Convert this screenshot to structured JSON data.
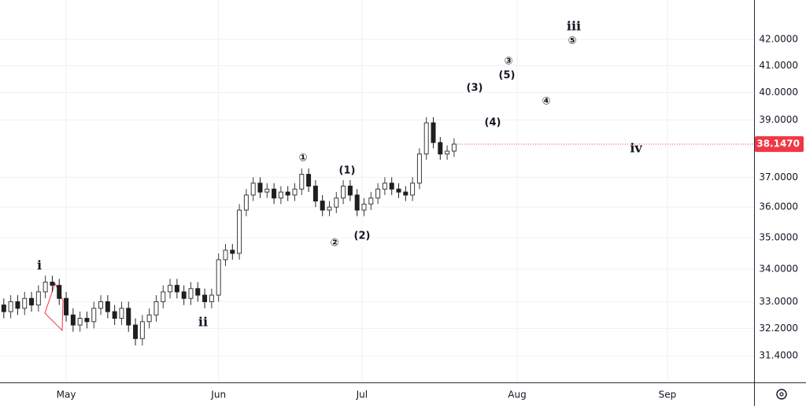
{
  "chart_data": {
    "type": "candlestick",
    "log_scale": true,
    "grid": true,
    "up_color": "#3a3a3a",
    "down_color": "#1f1f1f",
    "x": [
      -9,
      -8,
      -7,
      -6,
      -5,
      -4,
      -3,
      -2,
      -1,
      0,
      1,
      2,
      3,
      4,
      5,
      6,
      7,
      8,
      9,
      10,
      11,
      12,
      13,
      14,
      15,
      16,
      17,
      18,
      19,
      20,
      21,
      22,
      23,
      24,
      25,
      26,
      27,
      28,
      29,
      30,
      31,
      32,
      33,
      34,
      35,
      36,
      37,
      38,
      39,
      40,
      41,
      42,
      43,
      44,
      45,
      46,
      47,
      48,
      49,
      50,
      51,
      52,
      53,
      54,
      55,
      56
    ],
    "open": [
      32.9,
      32.7,
      33.0,
      32.8,
      33.1,
      32.9,
      33.3,
      33.6,
      33.5,
      33.1,
      32.6,
      32.3,
      32.5,
      32.4,
      32.8,
      33.0,
      32.7,
      32.5,
      32.8,
      32.3,
      31.9,
      32.4,
      32.6,
      33.0,
      33.3,
      33.5,
      33.3,
      33.1,
      33.4,
      33.2,
      33.0,
      33.2,
      34.3,
      34.6,
      34.5,
      35.9,
      36.4,
      36.8,
      36.5,
      36.6,
      36.3,
      36.5,
      36.4,
      36.6,
      37.1,
      36.7,
      36.2,
      35.9,
      36.0,
      36.3,
      36.7,
      36.4,
      35.9,
      36.1,
      36.3,
      36.6,
      36.8,
      36.6,
      36.5,
      36.4,
      36.8,
      37.8,
      38.9,
      38.2,
      37.8,
      37.9
    ],
    "high": [
      33.1,
      33.2,
      33.2,
      33.3,
      33.3,
      33.5,
      33.8,
      33.8,
      33.7,
      33.3,
      32.8,
      32.7,
      32.7,
      33.0,
      33.2,
      33.2,
      32.9,
      33.0,
      33.0,
      32.5,
      32.6,
      32.8,
      33.2,
      33.5,
      33.7,
      33.7,
      33.5,
      33.6,
      33.6,
      33.4,
      33.4,
      34.5,
      34.8,
      34.8,
      36.1,
      36.6,
      37.0,
      37.0,
      36.8,
      36.8,
      36.7,
      36.7,
      36.8,
      37.3,
      37.3,
      36.9,
      36.4,
      36.2,
      36.5,
      36.9,
      36.9,
      36.6,
      36.3,
      36.5,
      36.8,
      37.0,
      37.0,
      36.8,
      36.7,
      37.0,
      38.0,
      39.1,
      39.1,
      38.4,
      38.1,
      38.35
    ],
    "low": [
      32.5,
      32.5,
      32.6,
      32.6,
      32.7,
      32.7,
      33.1,
      33.3,
      32.9,
      32.4,
      32.1,
      32.1,
      32.2,
      32.2,
      32.6,
      32.5,
      32.3,
      32.3,
      32.1,
      31.7,
      31.7,
      32.2,
      32.4,
      32.8,
      33.1,
      33.1,
      32.9,
      32.9,
      33.0,
      32.8,
      32.8,
      33.0,
      34.1,
      34.3,
      34.3,
      35.7,
      36.2,
      36.3,
      36.3,
      36.1,
      36.1,
      36.2,
      36.2,
      36.4,
      36.5,
      36.0,
      35.7,
      35.7,
      35.8,
      36.1,
      36.2,
      35.7,
      35.7,
      35.9,
      36.1,
      36.4,
      36.4,
      36.3,
      36.2,
      36.2,
      36.6,
      37.6,
      38.0,
      37.6,
      37.6,
      37.7
    ],
    "close": [
      32.7,
      33.0,
      32.8,
      33.1,
      32.9,
      33.3,
      33.6,
      33.5,
      33.1,
      32.6,
      32.3,
      32.5,
      32.4,
      32.8,
      33.0,
      32.7,
      32.5,
      32.8,
      32.3,
      31.9,
      32.4,
      32.6,
      33.0,
      33.3,
      33.5,
      33.3,
      33.1,
      33.4,
      33.2,
      33.0,
      33.2,
      34.3,
      34.6,
      34.5,
      35.9,
      36.4,
      36.8,
      36.5,
      36.6,
      36.3,
      36.5,
      36.4,
      36.6,
      37.1,
      36.7,
      36.2,
      35.9,
      36.0,
      36.3,
      36.7,
      36.4,
      35.9,
      36.1,
      36.3,
      36.6,
      36.8,
      36.6,
      36.5,
      36.4,
      36.8,
      37.8,
      38.9,
      38.2,
      37.8,
      37.9,
      38.147
    ],
    "last_price_label": "38.1470",
    "last_price_color": "#f23645",
    "xlim": [
      -9.55,
      99.3
    ],
    "xticks": [
      {
        "value": 0,
        "label": "May"
      },
      {
        "value": 22,
        "label": "Jun"
      },
      {
        "value": 42.7,
        "label": "Jul"
      },
      {
        "value": 65.1,
        "label": "Aug"
      },
      {
        "value": 86.8,
        "label": "Sep"
      }
    ],
    "ylim": [
      30.64,
      43.55
    ],
    "yticks": [
      {
        "value": 31.4,
        "label": "31.4000"
      },
      {
        "value": 32.2,
        "label": "32.2000"
      },
      {
        "value": 33,
        "label": "33.0000"
      },
      {
        "value": 34,
        "label": "34.0000"
      },
      {
        "value": 35,
        "label": "35.0000"
      },
      {
        "value": 36,
        "label": "36.0000"
      },
      {
        "value": 37,
        "label": "37.0000"
      },
      {
        "value": 39,
        "label": "39.0000"
      },
      {
        "value": 40,
        "label": "40.0000"
      },
      {
        "value": 41,
        "label": "41.0000"
      },
      {
        "value": 42,
        "label": "42.0000"
      }
    ],
    "annotations": [
      "i",
      "ii",
      "①",
      "②",
      "(1)",
      "(2)",
      "③",
      "(3)",
      "(5)",
      "④",
      "(4)",
      "⑤",
      "iii",
      "iv"
    ]
  }
}
